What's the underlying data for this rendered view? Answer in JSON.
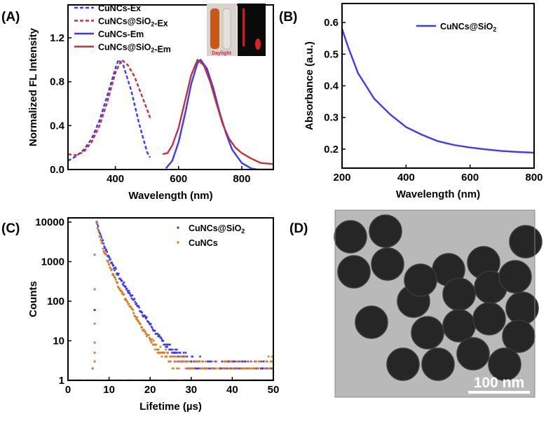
{
  "panels": {
    "A": {
      "label": "(A)"
    },
    "B": {
      "label": "(B)"
    },
    "C": {
      "label": "(C)"
    },
    "D": {
      "label": "(D)",
      "scale_bar": "100 nm"
    }
  },
  "inset_photo": {
    "left_caption": "Daylight"
  },
  "colors": {
    "blue": "#3a3aff",
    "red": "#c5303a",
    "orange": "#e07a1e"
  },
  "chart_data": [
    {
      "panel": "A",
      "type": "line",
      "xlabel": "Wavelength (nm)",
      "ylabel": "Normalized FL Intensity",
      "xlim": [
        250,
        900
      ],
      "ylim": [
        0,
        1.5
      ],
      "xticks": [
        400,
        600,
        800
      ],
      "yticks": [
        0.0,
        0.4,
        0.8,
        1.2
      ],
      "ytick_labels": [
        "0.0",
        "0.4",
        "0.8",
        "1.2"
      ],
      "legend": "top-left",
      "series": [
        {
          "name": "CuNCs-Ex",
          "style": "dashed",
          "color": "#3a3aff",
          "x": [
            250,
            275,
            300,
            325,
            350,
            375,
            400,
            410,
            425,
            450,
            475,
            500,
            510
          ],
          "y": [
            0.08,
            0.12,
            0.18,
            0.28,
            0.45,
            0.68,
            0.92,
            1.0,
            0.95,
            0.72,
            0.42,
            0.16,
            0.11
          ]
        },
        {
          "name": "CuNCs@SiO2-Ex",
          "style": "dashed",
          "color": "#c5303a",
          "x": [
            250,
            275,
            300,
            325,
            350,
            375,
            400,
            420,
            440,
            460,
            480,
            500,
            510
          ],
          "y": [
            0.14,
            0.13,
            0.16,
            0.25,
            0.4,
            0.62,
            0.88,
            1.0,
            0.95,
            0.85,
            0.7,
            0.55,
            0.47
          ]
        },
        {
          "name": "CuNCs-Em",
          "style": "solid",
          "color": "#3a3aff",
          "x": [
            560,
            580,
            600,
            620,
            640,
            660,
            670,
            690,
            710,
            730,
            750,
            770,
            800,
            830,
            850,
            900
          ],
          "y": [
            0.01,
            0.08,
            0.25,
            0.5,
            0.78,
            0.97,
            1.0,
            0.92,
            0.74,
            0.52,
            0.33,
            0.18,
            0.06,
            0.01,
            0,
            0
          ]
        },
        {
          "name": "CuNCs@SiO2-Em",
          "style": "solid",
          "color": "#c5303a",
          "x": [
            550,
            565,
            580,
            600,
            620,
            640,
            660,
            680,
            700,
            720,
            740,
            760,
            780,
            800,
            830,
            860,
            900
          ],
          "y": [
            0.14,
            0.15,
            0.22,
            0.38,
            0.62,
            0.86,
            1.0,
            0.95,
            0.8,
            0.6,
            0.41,
            0.28,
            0.2,
            0.15,
            0.1,
            0.06,
            0.05
          ]
        }
      ]
    },
    {
      "panel": "B",
      "type": "line",
      "xlabel": "Wavelength (nm)",
      "ylabel": "Absorbance (a.u.)",
      "xlim": [
        200,
        800
      ],
      "ylim": [
        0.14,
        0.66
      ],
      "xticks": [
        200,
        400,
        600,
        800
      ],
      "yticks": [
        0.2,
        0.3,
        0.4,
        0.5,
        0.6
      ],
      "legend": "top-right",
      "series": [
        {
          "name": "CuNCs@SiO2",
          "style": "solid",
          "color": "#3a3aff",
          "x": [
            200,
            220,
            250,
            300,
            350,
            400,
            450,
            500,
            550,
            600,
            650,
            700,
            750,
            800
          ],
          "y": [
            0.58,
            0.52,
            0.44,
            0.36,
            0.31,
            0.27,
            0.245,
            0.225,
            0.213,
            0.205,
            0.199,
            0.194,
            0.191,
            0.189
          ]
        }
      ]
    },
    {
      "panel": "C",
      "type": "scatter",
      "xlabel": "Lifetime (µs)",
      "ylabel": "Counts",
      "xlim": [
        0,
        50
      ],
      "ylim": [
        1,
        10000
      ],
      "yscale": "log",
      "xticks": [
        0,
        10,
        20,
        30,
        40,
        50
      ],
      "yticks": [
        1,
        10,
        100,
        1000,
        10000
      ],
      "legend": "top-right",
      "series": [
        {
          "name": "CuNCs@SiO2",
          "color": "#3a3aff",
          "x": [
            6,
            6.5,
            7,
            8,
            9,
            10,
            11,
            12,
            13,
            14,
            15,
            16,
            17,
            18,
            19,
            20,
            21,
            22,
            23,
            24,
            25,
            26,
            28,
            30,
            32,
            35,
            38,
            41,
            44,
            47,
            50
          ],
          "y": [
            2,
            60,
            10000,
            4500,
            2200,
            1300,
            800,
            500,
            330,
            230,
            160,
            110,
            75,
            52,
            37,
            26,
            18,
            13,
            10,
            8,
            6,
            5,
            4,
            3,
            3,
            2,
            2,
            2,
            2,
            2,
            2
          ]
        },
        {
          "name": "CuNCs",
          "color": "#e07a1e",
          "x": [
            6,
            6.5,
            7,
            8,
            9,
            10,
            11,
            12,
            13,
            14,
            15,
            16,
            17,
            18,
            19,
            20,
            21,
            22,
            23,
            24,
            26,
            28,
            30,
            33,
            36,
            40,
            44,
            48,
            50
          ],
          "y": [
            2,
            200,
            9500,
            3500,
            1600,
            850,
            480,
            290,
            180,
            115,
            75,
            50,
            33,
            22,
            15,
            11,
            8,
            6,
            5,
            4,
            3,
            3,
            2,
            2,
            2,
            2,
            2,
            2,
            3
          ]
        }
      ]
    }
  ]
}
